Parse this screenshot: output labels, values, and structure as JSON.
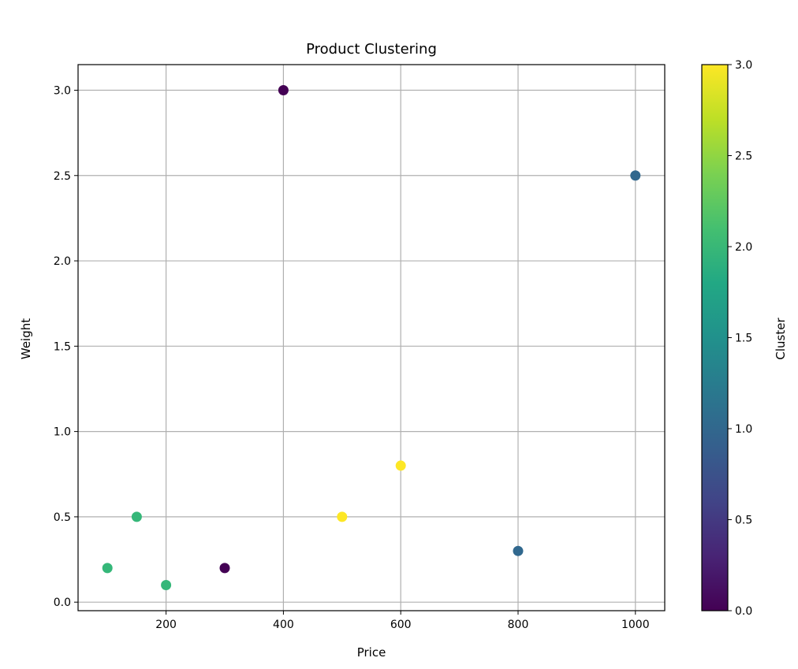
{
  "chart_data": {
    "type": "scatter",
    "title": "Product Clustering",
    "xlabel": "Price",
    "ylabel": "Weight",
    "xlim": [
      50,
      1050
    ],
    "ylim": [
      -0.05,
      3.15
    ],
    "xticks": [
      200,
      400,
      600,
      800,
      1000
    ],
    "yticks": [
      0.0,
      0.5,
      1.0,
      1.5,
      2.0,
      2.5,
      3.0
    ],
    "grid": true,
    "points": [
      {
        "x": 100,
        "y": 0.2,
        "cluster": 2
      },
      {
        "x": 150,
        "y": 0.5,
        "cluster": 2
      },
      {
        "x": 200,
        "y": 0.1,
        "cluster": 2
      },
      {
        "x": 300,
        "y": 0.2,
        "cluster": 0
      },
      {
        "x": 400,
        "y": 3.0,
        "cluster": 0
      },
      {
        "x": 500,
        "y": 0.5,
        "cluster": 3
      },
      {
        "x": 600,
        "y": 0.8,
        "cluster": 3
      },
      {
        "x": 800,
        "y": 0.3,
        "cluster": 1
      },
      {
        "x": 1000,
        "y": 2.5,
        "cluster": 1
      }
    ],
    "colorbar": {
      "label": "Cluster",
      "range": [
        0.0,
        3.0
      ],
      "ticks": [
        0.0,
        0.5,
        1.0,
        1.5,
        2.0,
        2.5,
        3.0
      ],
      "colormap": "viridis"
    },
    "cluster_colors": {
      "0": "#440154",
      "1": "#31688e",
      "2": "#35b779",
      "3": "#fde725"
    }
  }
}
